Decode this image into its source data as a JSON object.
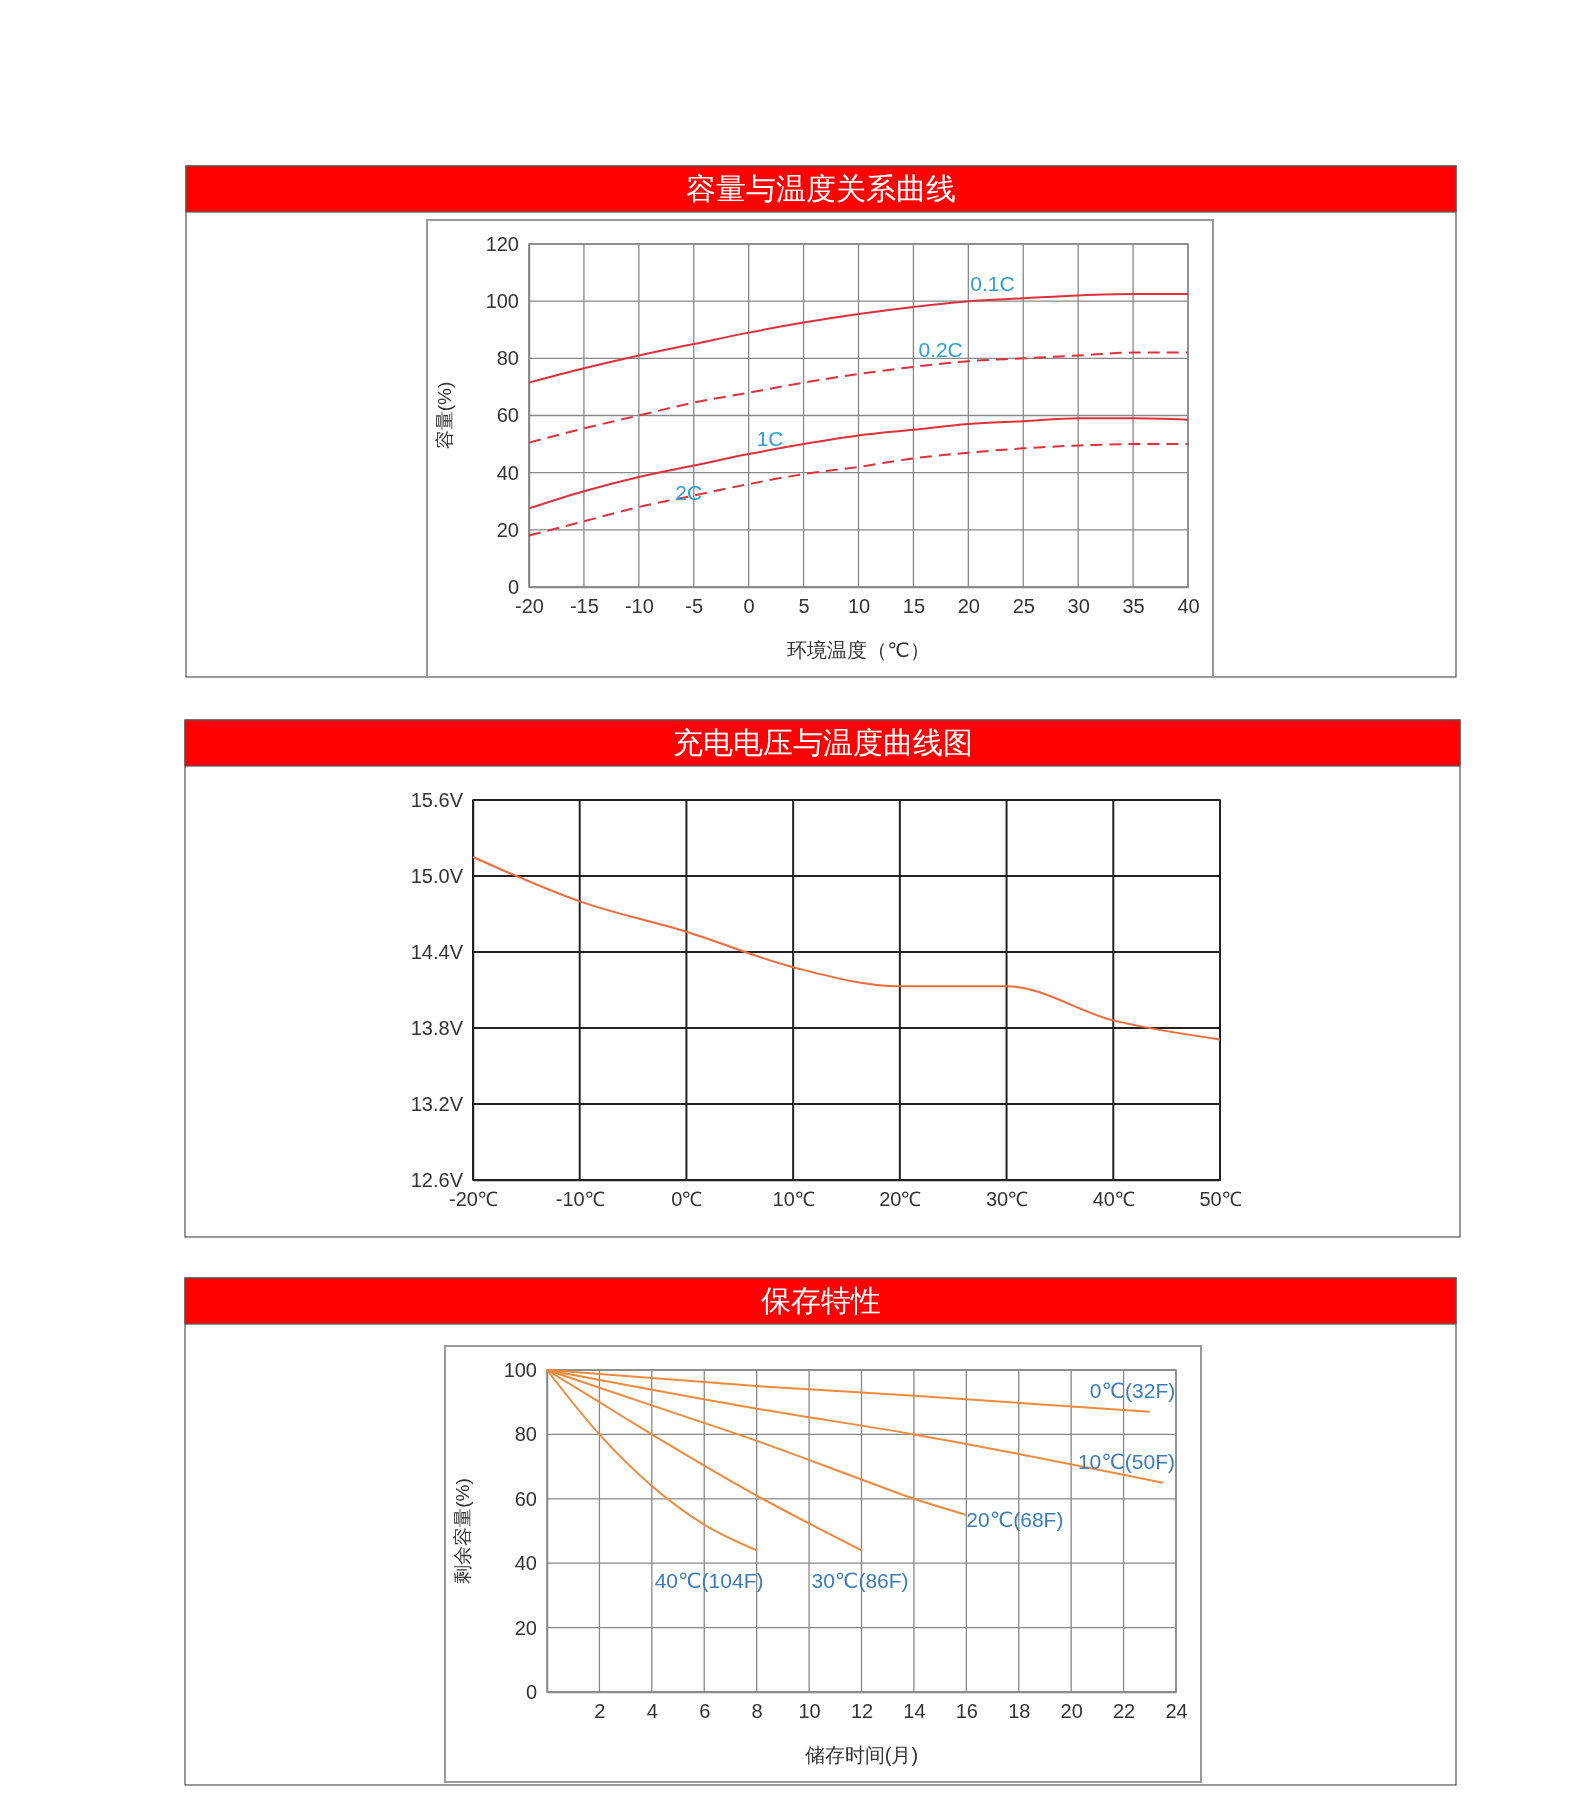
{
  "chart_data": [
    {
      "type": "line",
      "title": "容量与温度关系曲线",
      "xlabel": "环境温度（℃）",
      "ylabel": "容量(%)",
      "xlim": [
        -20,
        40
      ],
      "xticks": [
        -20,
        -15,
        -10,
        -5,
        0,
        5,
        10,
        15,
        20,
        25,
        30,
        35,
        40
      ],
      "ylim": [
        0,
        120
      ],
      "yticks": [
        0,
        20,
        40,
        60,
        80,
        100,
        120
      ],
      "grid": true,
      "x": [
        -20,
        -15,
        -10,
        -5,
        0,
        5,
        10,
        15,
        20,
        25,
        30,
        35,
        40
      ],
      "series": [
        {
          "name": "0.1C",
          "color": "#e0303c",
          "line_style": "solid",
          "values": [
            71.5,
            76.5,
            81,
            85,
            89,
            92.5,
            95.5,
            98,
            100,
            101,
            102,
            102.5,
            102.5
          ]
        },
        {
          "name": "0.2C",
          "color": "#e0303c",
          "line_style": "dashed",
          "values": [
            50.5,
            55.5,
            60,
            64.5,
            68,
            71.5,
            74.5,
            77,
            79,
            80,
            81,
            82,
            82
          ]
        },
        {
          "name": "1C",
          "color": "#e0303c",
          "line_style": "solid",
          "values": [
            27.5,
            33.5,
            38.5,
            42.5,
            46.5,
            50,
            53,
            55,
            57,
            58,
            59,
            59,
            58.5
          ]
        },
        {
          "name": "2C",
          "color": "#e0303c",
          "line_style": "dashed",
          "values": [
            18,
            23,
            28,
            32,
            36,
            39.5,
            42,
            45,
            47,
            48.5,
            49.5,
            50,
            50
          ]
        }
      ]
    },
    {
      "type": "line",
      "title": "充电电压与温度曲线图",
      "xlim": [
        -20,
        50
      ],
      "xticks": [
        {
          "value": -20,
          "label": "-20℃"
        },
        {
          "value": -10,
          "label": "-10℃"
        },
        {
          "value": 0,
          "label": "0℃"
        },
        {
          "value": 10,
          "label": "10℃"
        },
        {
          "value": 20,
          "label": "20℃"
        },
        {
          "value": 30,
          "label": "30℃"
        },
        {
          "value": 40,
          "label": "40℃"
        },
        {
          "value": 50,
          "label": "50℃"
        }
      ],
      "ylim": [
        12.6,
        15.6
      ],
      "yticks": [
        {
          "value": 12.6,
          "label": "12.6V"
        },
        {
          "value": 13.2,
          "label": "13.2V"
        },
        {
          "value": 13.8,
          "label": "13.8V"
        },
        {
          "value": 14.4,
          "label": "14.4V"
        },
        {
          "value": 15.0,
          "label": "15.0V"
        },
        {
          "value": 15.6,
          "label": "15.6V"
        }
      ],
      "grid": true,
      "x": [
        -20,
        -10,
        0,
        10,
        20,
        30,
        40,
        50
      ],
      "series": [
        {
          "color": "#f06a3a",
          "line_style": "solid",
          "values": [
            15.15,
            14.8,
            14.56,
            14.28,
            14.13,
            14.13,
            13.86,
            13.71
          ]
        }
      ]
    },
    {
      "type": "line",
      "title": "保存特性",
      "xlabel": "储存时间(月)",
      "ylabel": "剩余容量(%)",
      "xlim": [
        0,
        24
      ],
      "xticks": [
        2,
        4,
        6,
        8,
        10,
        12,
        14,
        16,
        18,
        20,
        22,
        24
      ],
      "ylim": [
        0,
        100
      ],
      "yticks": [
        0,
        20,
        40,
        60,
        80,
        100
      ],
      "grid": true,
      "series": [
        {
          "name": "0℃(32F)",
          "color": "#f08a3a",
          "line_style": "solid",
          "x": [
            0,
            8,
            14,
            23
          ],
          "values": [
            100,
            95,
            92,
            87
          ]
        },
        {
          "name": "10℃(50F)",
          "color": "#f08a3a",
          "line_style": "solid",
          "x": [
            0,
            8,
            14,
            23.5
          ],
          "values": [
            100,
            88,
            80,
            65
          ]
        },
        {
          "name": "20℃(68F)",
          "color": "#f08a3a",
          "line_style": "solid",
          "x": [
            0,
            4,
            8,
            12,
            14,
            16
          ],
          "values": [
            100,
            89,
            78,
            66,
            60,
            55
          ]
        },
        {
          "name": "30℃(86F)",
          "color": "#f08a3a",
          "line_style": "solid",
          "x": [
            0,
            2,
            4,
            8,
            12
          ],
          "values": [
            100,
            90,
            80,
            61,
            44
          ]
        },
        {
          "name": "40℃(104F)",
          "color": "#f08a3a",
          "line_style": "solid",
          "x": [
            0,
            2,
            4,
            6,
            8
          ],
          "values": [
            100,
            80,
            64,
            52,
            44
          ]
        }
      ]
    }
  ]
}
